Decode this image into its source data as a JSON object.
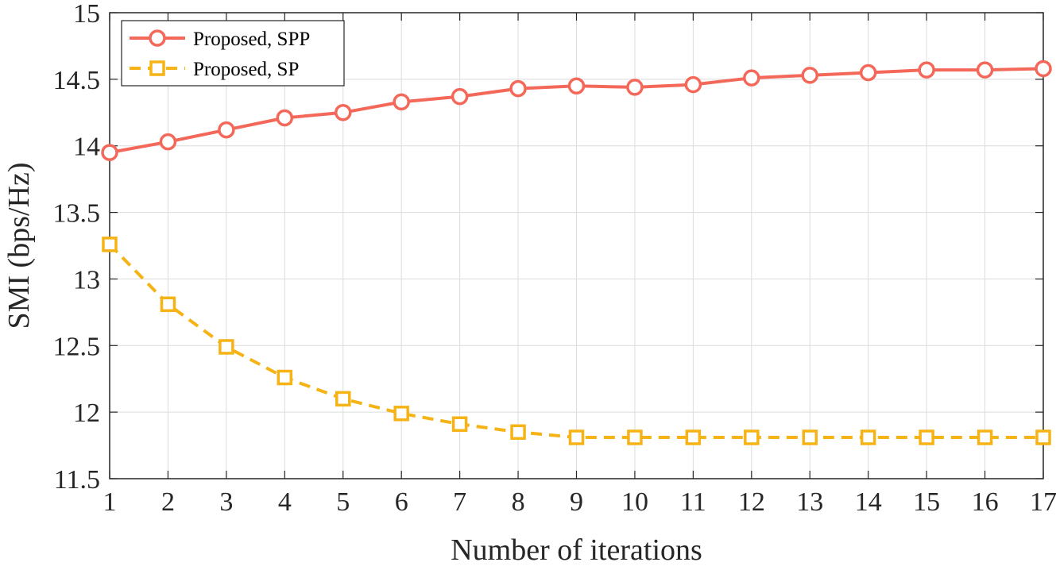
{
  "chart_data": {
    "type": "line",
    "title": "",
    "xlabel": "Number of iterations",
    "ylabel": "SMI (bps/Hz)",
    "x": [
      1,
      2,
      3,
      4,
      5,
      6,
      7,
      8,
      9,
      10,
      11,
      12,
      13,
      14,
      15,
      16,
      17
    ],
    "xlim": [
      1,
      17
    ],
    "ylim": [
      11.5,
      15
    ],
    "xticks": [
      "1",
      "2",
      "3",
      "4",
      "5",
      "6",
      "7",
      "8",
      "9",
      "10",
      "11",
      "12",
      "13",
      "14",
      "15",
      "16",
      "17"
    ],
    "yticks": [
      "11.5",
      "12",
      "12.5",
      "13",
      "13.5",
      "14",
      "14.5",
      "15"
    ],
    "grid": true,
    "legend_position": "top-left",
    "series": [
      {
        "name": "Proposed, SPP",
        "color": "#F4685A",
        "line_style": "solid",
        "marker": "circle",
        "values": [
          13.95,
          14.03,
          14.12,
          14.21,
          14.25,
          14.33,
          14.37,
          14.43,
          14.45,
          14.44,
          14.46,
          14.51,
          14.53,
          14.55,
          14.57,
          14.57,
          14.58
        ]
      },
      {
        "name": "Proposed, SP",
        "color": "#F5B315",
        "line_style": "dashed",
        "marker": "square",
        "values": [
          13.26,
          12.81,
          12.49,
          12.26,
          12.1,
          11.99,
          11.91,
          11.85,
          11.81,
          11.81,
          11.81,
          11.81,
          11.81,
          11.81,
          11.81,
          11.81,
          11.81
        ]
      }
    ]
  }
}
